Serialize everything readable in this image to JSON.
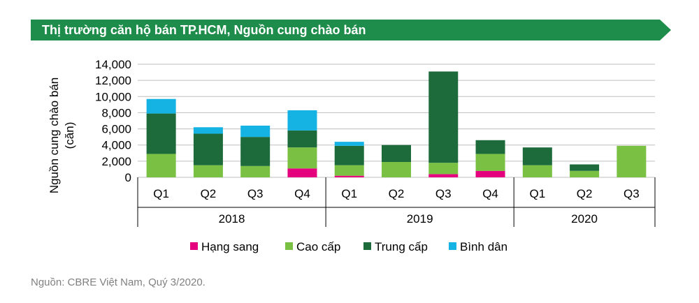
{
  "header": {
    "title": "Thị trường căn hộ bán TP.HCM, Nguồn cung chào bán"
  },
  "colors": {
    "header_banner": "#1e8c4a",
    "Hạng sang": "#e5007e",
    "Cao cấp": "#7ac143",
    "Trung cấp": "#1d6b3a",
    "Bình dân": "#15b3e3",
    "grid": "#bfbfbf",
    "axis_text": "#000000"
  },
  "chart_data": {
    "type": "bar",
    "stacked": true,
    "ylabel": "Nguồn cung chào bán (căn)",
    "ylabel_lines": [
      "Nguồn cung chào bán",
      "(căn)"
    ],
    "ylim": [
      0,
      14000
    ],
    "yticks": [
      "0",
      "2,000",
      "4,000",
      "6,000",
      "8,000",
      "10,000",
      "12,000",
      "14,000"
    ],
    "ytick_values": [
      0,
      2000,
      4000,
      6000,
      8000,
      10000,
      12000,
      14000
    ],
    "grid": true,
    "legend_position": "bottom",
    "categories": [
      "Q1",
      "Q2",
      "Q3",
      "Q4",
      "Q1",
      "Q2",
      "Q3",
      "Q4",
      "Q1",
      "Q2",
      "Q3"
    ],
    "groups": [
      {
        "label": "2018",
        "count": 4
      },
      {
        "label": "2019",
        "count": 4
      },
      {
        "label": "2020",
        "count": 3
      }
    ],
    "series": [
      {
        "name": "Hạng sang",
        "values": [
          0,
          0,
          0,
          1100,
          200,
          0,
          400,
          800,
          0,
          0,
          0
        ]
      },
      {
        "name": "Cao cấp",
        "values": [
          2900,
          1500,
          1400,
          2600,
          1300,
          1900,
          1400,
          2100,
          1500,
          800,
          3900
        ]
      },
      {
        "name": "Trung cấp",
        "values": [
          5000,
          3900,
          3600,
          2100,
          2400,
          2100,
          11300,
          1700,
          2200,
          800,
          0
        ]
      },
      {
        "name": "Bình dân",
        "values": [
          1800,
          800,
          1400,
          2500,
          500,
          0,
          0,
          0,
          0,
          0,
          0
        ]
      }
    ]
  },
  "source": {
    "text": "Nguồn: CBRE Việt Nam, Quý 3/2020."
  }
}
